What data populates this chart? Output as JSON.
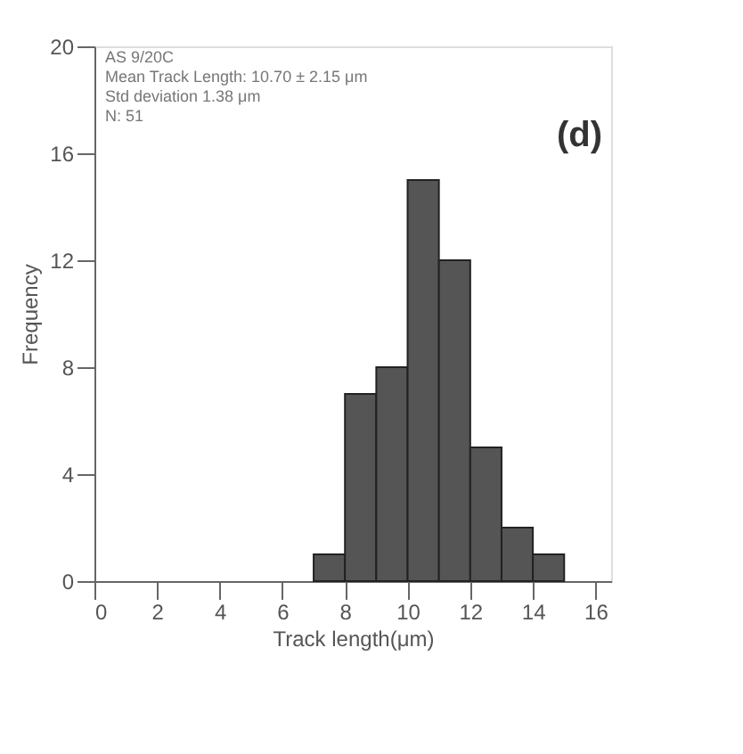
{
  "chart_data": {
    "type": "histogram",
    "xlabel": "Track length(μm)",
    "ylabel": "Frequency",
    "bins": [
      7,
      8,
      9,
      10,
      11,
      12,
      13,
      14,
      15
    ],
    "values": [
      1,
      7,
      8,
      15,
      12,
      5,
      2,
      1
    ],
    "color": "#555555",
    "xlim": [
      0,
      16.5
    ],
    "xticks": [
      0,
      2,
      4,
      6,
      8,
      10,
      12,
      14,
      16
    ],
    "ylim": [
      0,
      20
    ],
    "yticks": [
      0,
      4,
      8,
      12,
      16,
      20
    ],
    "grid": false,
    "annotations": [
      "AS 9/20C",
      "Mean Track Length: 10.70 ± 2.15 μm",
      "Std deviation 1.38 μm",
      "N: 51",
      "(d)"
    ]
  }
}
